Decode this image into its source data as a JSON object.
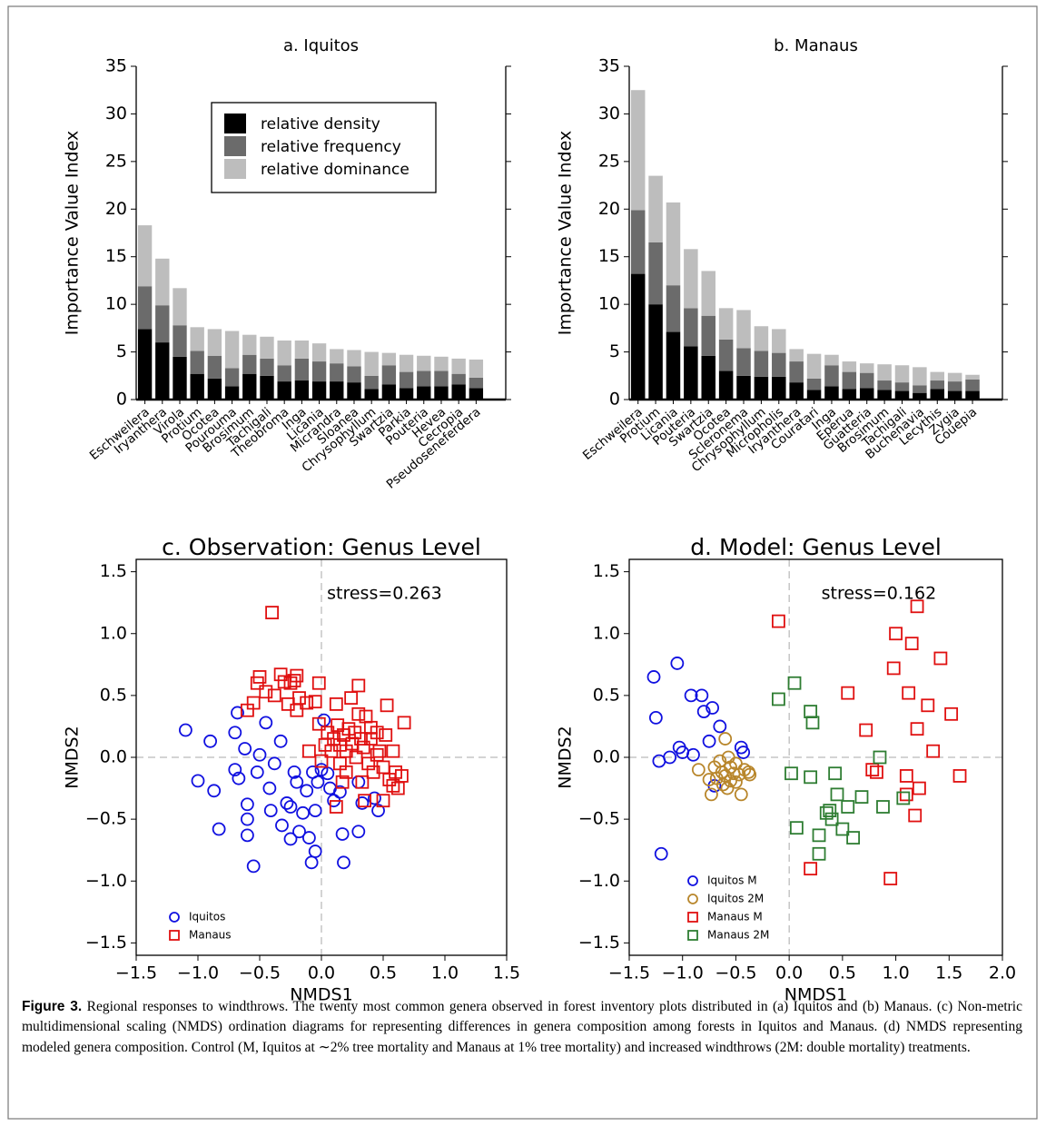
{
  "chart_data": [
    {
      "type": "bar",
      "stacked": true,
      "title": "a. Iquitos",
      "y_label": "Importance Value Index",
      "legend": "upper center",
      "categories": [
        "Eschweilera",
        "Iryanthera",
        "Virola",
        "Protium",
        "Ocotea",
        "Pourouma",
        "Brosimum",
        "Tachigali",
        "Theobroma",
        "Inga",
        "Licania",
        "Micrandra",
        "Sloanea",
        "Chrysophyllum",
        "Swartzia",
        "Parkia",
        "Pouteria",
        "Hevea",
        "Cecropia",
        "Pseudoseneferdera"
      ],
      "series": [
        {
          "name": "relative density",
          "color": "#000000",
          "values": [
            7.4,
            6.0,
            4.5,
            2.7,
            2.2,
            1.4,
            2.7,
            2.5,
            1.9,
            2.0,
            1.9,
            1.9,
            1.8,
            1.1,
            1.6,
            1.2,
            1.4,
            1.4,
            1.6,
            1.2
          ]
        },
        {
          "name": "relative frequency",
          "color": "#6b6b6b",
          "values": [
            4.5,
            3.9,
            3.3,
            2.4,
            2.4,
            1.9,
            2.0,
            1.8,
            1.7,
            2.3,
            2.1,
            1.9,
            1.7,
            1.4,
            2.0,
            1.7,
            1.6,
            1.6,
            1.1,
            1.1
          ]
        },
        {
          "name": "relative dominance",
          "color": "#bdbdbd",
          "values": [
            6.4,
            4.9,
            3.9,
            2.5,
            2.8,
            3.9,
            2.1,
            2.3,
            2.6,
            1.9,
            1.9,
            1.5,
            1.7,
            2.5,
            1.3,
            1.8,
            1.6,
            1.5,
            1.6,
            1.9
          ]
        }
      ],
      "ylim": [
        0,
        35
      ],
      "yticks": [
        0,
        5,
        10,
        15,
        20,
        25,
        30,
        35
      ]
    },
    {
      "type": "bar",
      "stacked": true,
      "title": "b. Manaus",
      "y_label": "Importance Value Index",
      "categories": [
        "Eschweilera",
        "Protium",
        "Licania",
        "Pouteria",
        "Swartzia",
        "Ocotea",
        "Scleronema",
        "Chrysophyllum",
        "Micropholis",
        "Iryanthera",
        "Couratari",
        "Inga",
        "Eperua",
        "Guatteria",
        "Brosimum",
        "Tachigali",
        "Buchenavia",
        "Lecythis",
        "Zygia",
        "Couepia"
      ],
      "series": [
        {
          "color": "#000000",
          "values": [
            13.2,
            10.0,
            7.1,
            5.6,
            4.6,
            3.0,
            2.5,
            2.4,
            2.4,
            1.8,
            1.0,
            1.4,
            1.1,
            1.2,
            1.0,
            0.9,
            0.7,
            1.1,
            0.9,
            0.9
          ]
        },
        {
          "color": "#6b6b6b",
          "values": [
            6.7,
            6.5,
            4.9,
            4.0,
            4.2,
            3.3,
            2.9,
            2.7,
            2.5,
            2.2,
            1.2,
            2.2,
            1.8,
            1.6,
            1.0,
            0.9,
            0.8,
            0.9,
            1.0,
            1.2
          ]
        },
        {
          "color": "#bdbdbd",
          "values": [
            12.6,
            7.0,
            8.7,
            6.2,
            4.7,
            3.3,
            4.0,
            2.6,
            2.5,
            1.3,
            2.6,
            1.1,
            1.1,
            1.0,
            1.7,
            1.8,
            1.9,
            0.9,
            0.9,
            0.5
          ]
        }
      ],
      "ylim": [
        0,
        35
      ],
      "yticks": [
        0,
        5,
        10,
        15,
        20,
        25,
        30,
        35
      ]
    },
    {
      "type": "scatter",
      "title": "c. Observation: Genus Level",
      "x_label": "NMDS1",
      "y_label": "NMDS2",
      "annotation": "stress=0.263",
      "legend": "lower left",
      "series": [
        {
          "name": "Iquitos",
          "color": "#1010e0",
          "marker": "circle",
          "x": [
            -1.1,
            -1.0,
            -0.9,
            -0.87,
            -0.83,
            -0.68,
            -0.7,
            -0.7,
            -0.67,
            -0.62,
            -0.6,
            -0.6,
            -0.6,
            -0.55,
            -0.52,
            -0.5,
            -0.45,
            -0.42,
            -0.41,
            -0.38,
            -0.33,
            -0.32,
            -0.28,
            -0.25,
            -0.25,
            -0.22,
            -0.2,
            -0.18,
            -0.15,
            -0.12,
            -0.1,
            -0.08,
            -0.07,
            -0.05,
            -0.05,
            -0.03,
            0.0,
            0.02,
            0.05,
            0.07,
            0.1,
            0.15,
            0.17,
            0.18,
            0.3,
            0.33,
            0.43,
            0.46,
            0.3
          ],
          "y": [
            0.22,
            -0.19,
            0.13,
            -0.27,
            -0.58,
            0.36,
            0.2,
            -0.1,
            -0.17,
            0.07,
            -0.38,
            -0.5,
            -0.63,
            -0.88,
            -0.12,
            0.02,
            0.28,
            -0.25,
            -0.43,
            -0.05,
            0.13,
            -0.55,
            -0.37,
            -0.4,
            -0.66,
            -0.12,
            -0.2,
            -0.6,
            -0.45,
            -0.27,
            -0.65,
            -0.85,
            -0.12,
            -0.76,
            -0.43,
            -0.2,
            -0.1,
            0.3,
            -0.13,
            -0.25,
            -0.35,
            -0.28,
            -0.62,
            -0.85,
            -0.6,
            -0.37,
            -0.33,
            -0.43,
            -0.2
          ]
        },
        {
          "name": "Manaus",
          "color": "#e01010",
          "marker": "square",
          "x": [
            -0.4,
            -0.5,
            -0.52,
            -0.55,
            -0.6,
            -0.45,
            -0.38,
            -0.33,
            -0.3,
            -0.25,
            -0.22,
            -0.2,
            -0.27,
            -0.2,
            -0.18,
            -0.12,
            -0.1,
            -0.02,
            -0.05,
            -0.02,
            0.0,
            0.03,
            0.05,
            0.08,
            0.1,
            0.12,
            0.13,
            0.15,
            0.15,
            0.18,
            0.2,
            0.2,
            0.22,
            0.24,
            0.25,
            0.27,
            0.28,
            0.3,
            0.3,
            0.32,
            0.33,
            0.34,
            0.36,
            0.38,
            0.4,
            0.4,
            0.42,
            0.45,
            0.45,
            0.47,
            0.5,
            0.52,
            0.53,
            0.55,
            0.58,
            0.58,
            0.6,
            0.62,
            0.65,
            0.67,
            0.35,
            0.5,
            0.12,
            0.17
          ],
          "y": [
            1.17,
            0.65,
            0.6,
            0.44,
            0.38,
            0.53,
            0.5,
            0.67,
            0.61,
            0.6,
            0.62,
            0.66,
            0.43,
            0.38,
            0.48,
            0.44,
            0.05,
            0.6,
            0.45,
            0.27,
            -0.03,
            0.1,
            0.2,
            0.05,
            0.15,
            0.43,
            0.26,
            0.1,
            -0.05,
            0.18,
            0.05,
            -0.12,
            0.23,
            0.48,
            0.11,
            0.2,
            0.0,
            0.58,
            0.35,
            0.15,
            -0.2,
            0.08,
            0.33,
            -0.05,
            0.24,
            0.15,
            -0.12,
            0.2,
            0.02,
            0.05,
            -0.08,
            0.18,
            0.42,
            -0.18,
            0.05,
            -0.23,
            -0.12,
            -0.25,
            -0.15,
            0.28,
            -0.35,
            -0.35,
            -0.4,
            -0.2
          ]
        }
      ],
      "xlim": [
        -1.5,
        1.5
      ],
      "xticks": [
        {
          "value": -1.5,
          "label": "−1.5"
        },
        {
          "value": -1,
          "label": "−1.0"
        },
        {
          "value": -0.5,
          "label": "−0.5"
        },
        {
          "value": 0,
          "label": "0.0"
        },
        0.5,
        {
          "value": 1,
          "label": "1.0"
        },
        1.5
      ],
      "ylim": [
        -1.6,
        1.6
      ],
      "yticks": [
        {
          "value": -1.5,
          "label": "−1.5"
        },
        {
          "value": -1,
          "label": "−1.0"
        },
        {
          "value": -0.5,
          "label": "−0.5"
        },
        {
          "value": 0,
          "label": "0.0"
        },
        0.5,
        {
          "value": 1,
          "label": "1.0"
        },
        1.5
      ]
    },
    {
      "type": "scatter",
      "title": "d. Model: Genus Level",
      "x_label": "NMDS1",
      "y_label": "NMDS2",
      "annotation": "stress=0.162",
      "legend": "lower left",
      "series": [
        {
          "name": "Iquitos M",
          "color": "#1010e0",
          "marker": "circle",
          "x": [
            -1.27,
            -1.25,
            -1.22,
            -1.2,
            -1.12,
            -1.05,
            -1.03,
            -1.0,
            -0.92,
            -0.9,
            -0.82,
            -0.8,
            -0.75,
            -0.72,
            -0.7,
            -0.65,
            -0.45,
            -0.43
          ],
          "y": [
            0.65,
            0.32,
            -0.03,
            -0.78,
            0.0,
            0.76,
            0.08,
            0.04,
            0.5,
            0.02,
            0.5,
            0.37,
            0.13,
            0.4,
            -0.23,
            0.25,
            0.08,
            0.04
          ]
        },
        {
          "name": "Iquitos 2M",
          "color": "#b8862b",
          "marker": "circle",
          "x": [
            -0.85,
            -0.75,
            -0.73,
            -0.7,
            -0.68,
            -0.65,
            -0.63,
            -0.62,
            -0.6,
            -0.58,
            -0.57,
            -0.55,
            -0.55,
            -0.52,
            -0.5,
            -0.5,
            -0.47,
            -0.45,
            -0.42,
            -0.38,
            -0.37,
            -0.6
          ],
          "y": [
            -0.1,
            -0.18,
            -0.3,
            -0.08,
            -0.17,
            -0.03,
            -0.12,
            -0.22,
            -0.15,
            -0.25,
            0.0,
            -0.08,
            -0.19,
            -0.13,
            -0.05,
            -0.2,
            -0.14,
            -0.3,
            -0.1,
            -0.12,
            -0.14,
            0.15
          ]
        },
        {
          "name": "Manaus M",
          "color": "#e01010",
          "marker": "square",
          "x": [
            -0.1,
            0.2,
            0.55,
            0.72,
            0.78,
            0.82,
            0.95,
            0.98,
            1.0,
            1.1,
            1.12,
            1.15,
            1.18,
            1.2,
            1.2,
            1.22,
            1.3,
            1.35,
            1.42,
            1.52,
            1.6,
            1.1
          ],
          "y": [
            1.1,
            -0.9,
            0.52,
            0.22,
            -0.1,
            -0.12,
            -0.98,
            0.72,
            1.0,
            -0.15,
            0.52,
            0.92,
            -0.47,
            1.22,
            0.23,
            -0.25,
            0.42,
            0.05,
            0.8,
            0.35,
            -0.15,
            -0.3
          ]
        },
        {
          "name": "Manaus 2M",
          "color": "#2e7d32",
          "marker": "square",
          "x": [
            -0.1,
            0.05,
            0.02,
            0.07,
            0.2,
            0.22,
            0.2,
            0.28,
            0.28,
            0.38,
            0.4,
            0.43,
            0.45,
            0.5,
            0.55,
            0.6,
            0.68,
            0.85,
            0.88,
            1.07,
            0.35
          ],
          "y": [
            0.47,
            0.6,
            -0.13,
            -0.57,
            0.37,
            0.28,
            -0.16,
            -0.78,
            -0.63,
            -0.43,
            -0.5,
            -0.13,
            -0.3,
            -0.58,
            -0.4,
            -0.65,
            -0.32,
            0.0,
            -0.4,
            -0.33,
            -0.45
          ]
        }
      ],
      "xlim": [
        -1.5,
        2.0
      ],
      "xticks": [
        {
          "value": -1.5,
          "label": "−1.5"
        },
        {
          "value": -1,
          "label": "−1.0"
        },
        {
          "value": -0.5,
          "label": "−0.5"
        },
        {
          "value": 0,
          "label": "0.0"
        },
        0.5,
        {
          "value": 1,
          "label": "1.0"
        },
        1.5,
        {
          "value": 2,
          "label": "2.0"
        }
      ],
      "ylim": [
        -1.6,
        1.6
      ],
      "yticks": [
        {
          "value": -1.5,
          "label": "−1.5"
        },
        {
          "value": -1,
          "label": "−1.0"
        },
        {
          "value": -0.5,
          "label": "−0.5"
        },
        {
          "value": 0,
          "label": "0.0"
        },
        0.5,
        {
          "value": 1,
          "label": "1.0"
        },
        1.5
      ]
    }
  ],
  "caption": {
    "label": "Figure 3.",
    "text": "Regional responses to windthrows. The twenty most common genera observed in forest inventory plots distributed in (a) Iquitos and (b) Manaus. (c) Non-metric multidimensional scaling (NMDS) ordination diagrams for representing differences in genera composition among forests in Iquitos and Manaus. (d) NMDS representing modeled genera composition. Control (M, Iquitos at ∼2% tree mortality and Manaus at 1% tree mortality) and increased windthrows (2M: double mortality) treatments."
  }
}
